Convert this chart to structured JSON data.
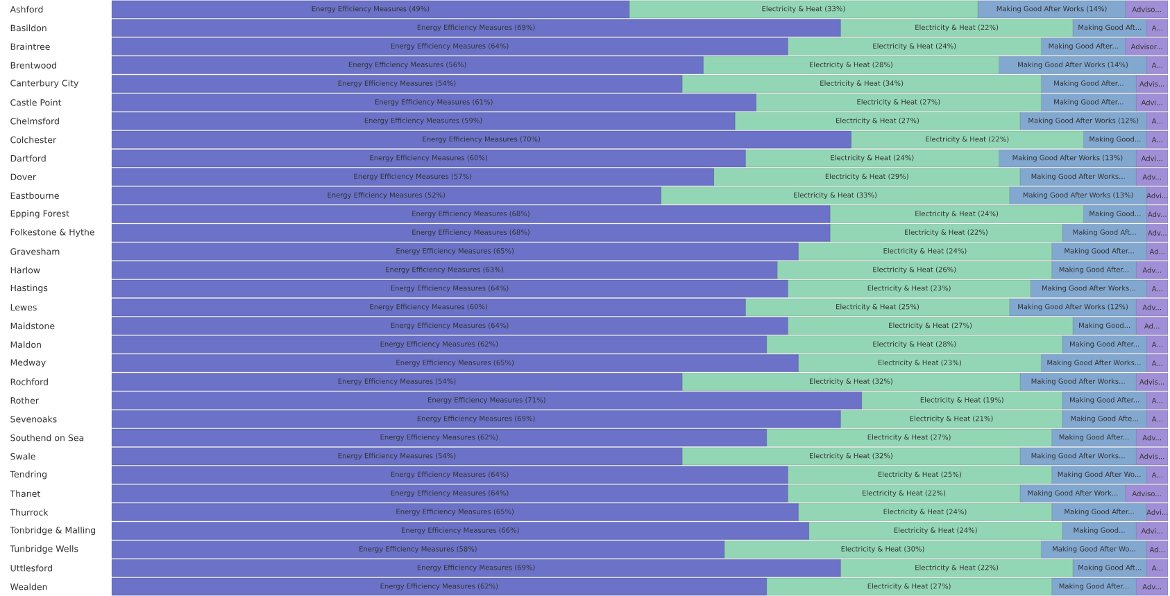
{
  "chart_data": {
    "type": "bar",
    "orientation": "horizontal",
    "stacked": true,
    "xlim": [
      0,
      100
    ],
    "tick_labels": "y",
    "categories": [
      "Ashford",
      "Basildon",
      "Braintree",
      "Brentwood",
      "Canterbury City",
      "Castle Point",
      "Chelmsford",
      "Colchester",
      "Dartford",
      "Dover",
      "Eastbourne",
      "Epping Forest",
      "Folkestone & Hythe",
      "Gravesham",
      "Harlow",
      "Hastings",
      "Lewes",
      "Maidstone",
      "Maldon",
      "Medway",
      "Rochford",
      "Rother",
      "Sevenoaks",
      "Southend on Sea",
      "Swale",
      "Tendring",
      "Thanet",
      "Thurrock",
      "Tonbridge & Malling",
      "Tunbridge Wells",
      "Uttlesford",
      "Wealden"
    ],
    "series": [
      {
        "color": "#6b72c8",
        "values": [
          49,
          69,
          64,
          56,
          54,
          61,
          59,
          70,
          60,
          57,
          52,
          68,
          68,
          65,
          63,
          64,
          60,
          64,
          62,
          65,
          54,
          71,
          69,
          62,
          54,
          64,
          64,
          65,
          66,
          58,
          69,
          62
        ],
        "value_labels": [
          "Energy Efficiency Measures (49%)",
          "Energy Efficiency Measures (69%)",
          "Energy Efficiency Measures (64%)",
          "Energy Efficiency Measures (56%)",
          "Energy Efficiency Measures (54%)",
          "Energy Efficiency Measures (61%)",
          "Energy Efficiency Measures (59%)",
          "Energy Efficiency Measures (70%)",
          "Energy Efficiency Measures (60%)",
          "Energy Efficiency Measures (57%)",
          "Energy Efficiency Measures (52%)",
          "Energy Efficiency Measures (68%)",
          "Energy Efficiency Measures (68%)",
          "Energy Efficiency Measures (65%)",
          "Energy Efficiency Measures (63%)",
          "Energy Efficiency Measures (64%)",
          "Energy Efficiency Measures (60%)",
          "Energy Efficiency Measures (64%)",
          "Energy Efficiency Measures (62%)",
          "Energy Efficiency Measures (65%)",
          "Energy Efficiency Measures (54%)",
          "Energy Efficiency Measures (71%)",
          "Energy Efficiency Measures (69%)",
          "Energy Efficiency Measures (62%)",
          "Energy Efficiency Measures (54%)",
          "Energy Efficiency Measures (64%)",
          "Energy Efficiency Measures (64%)",
          "Energy Efficiency Measures (65%)",
          "Energy Efficiency Measures (66%)",
          "Energy Efficiency Measures (58%)",
          "Energy Efficiency Measures (69%)",
          "Energy Efficiency Measures (62%)"
        ]
      },
      {
        "color": "#93d6b5",
        "values": [
          33,
          22,
          24,
          28,
          34,
          27,
          27,
          22,
          24,
          29,
          33,
          24,
          22,
          24,
          26,
          23,
          25,
          27,
          28,
          23,
          32,
          19,
          21,
          27,
          32,
          25,
          22,
          24,
          24,
          30,
          22,
          27
        ],
        "value_labels": [
          "Electricity & Heat (33%)",
          "Electricity & Heat (22%)",
          "Electricity & Heat (24%)",
          "Electricity & Heat (28%)",
          "Electricity & Heat (34%)",
          "Electricity & Heat (27%)",
          "Electricity & Heat (27%)",
          "Electricity & Heat (22%)",
          "Electricity & Heat (24%)",
          "Electricity & Heat (29%)",
          "Electricity & Heat (33%)",
          "Electricity & Heat (24%)",
          "Electricity & Heat (22%)",
          "Electricity & Heat (24%)",
          "Electricity & Heat (26%)",
          "Electricity & Heat (23%)",
          "Electricity & Heat (25%)",
          "Electricity & Heat (27%)",
          "Electricity & Heat (28%)",
          "Electricity & Heat (23%)",
          "Electricity & Heat (32%)",
          "Electricity & Heat (19%)",
          "Electricity & Heat (21%)",
          "Electricity & Heat (27%)",
          "Electricity & Heat (32%)",
          "Electricity & Heat (25%)",
          "Electricity & Heat (22%)",
          "Electricity & Heat (24%)",
          "Electricity & Heat (24%)",
          "Electricity & Heat (30%)",
          "Electricity & Heat (22%)",
          "Electricity & Heat (27%)"
        ]
      },
      {
        "color": "#82a8d0",
        "values": [
          14,
          7,
          8,
          14,
          9,
          9,
          12,
          6,
          13,
          11,
          13,
          6,
          8,
          9,
          8,
          11,
          12,
          6,
          8,
          10,
          11,
          8,
          8,
          8,
          11,
          9,
          10,
          9,
          7,
          10,
          7,
          8
        ],
        "value_labels": [
          "Making Good After Works (14%)",
          "Making Good Aft...",
          "Making Good After...",
          "Making Good After Works (14%)",
          "Making Good After...",
          "Making Good After...",
          "Making Good After Works (12%)",
          "Making Good...",
          "Making Good After Works (13%)",
          "Making Good After Works...",
          "Making Good After Works (13%)",
          "Making Good...",
          "Making Good Aft...",
          "Making Good After...",
          "Making Good After...",
          "Making Good After Works...",
          "Making Good After Works (12%)",
          "Making Good...",
          "Making Good After...",
          "Making Good After Works...",
          "Making Good After Works...",
          "Making Good After...",
          "Making Good Afte...",
          "Making Good After...",
          "Making Good After Works...",
          "Making Good After Wo...",
          "Making Good After Work...",
          "Making Good After...",
          "Making Good...",
          "Making Good After Wo...",
          "Making Good Aft...",
          "Making Good After..."
        ]
      },
      {
        "color": "#a08fd6",
        "values": [
          4,
          2,
          4,
          2,
          3,
          3,
          2,
          2,
          3,
          3,
          2,
          2,
          2,
          2,
          3,
          2,
          3,
          3,
          2,
          2,
          3,
          2,
          2,
          3,
          3,
          2,
          4,
          2,
          3,
          2,
          2,
          3
        ],
        "value_labels": [
          "Adviso...",
          "A...",
          "Advisor...",
          "A...",
          "Advis...",
          "Advi...",
          "A...",
          "A...",
          "Advi...",
          "Adv...",
          "Advi...",
          "Adv...",
          "Adv...",
          "Ad...",
          "Adv...",
          "A...",
          "Adv...",
          "Ad...",
          "A...",
          "A...",
          "Advis...",
          "A...",
          "A...",
          "Adv...",
          "Advis...",
          "A...",
          "Adviso...",
          "Advi...",
          "Advi...",
          "Ad...",
          "A...",
          "Adv..."
        ]
      }
    ]
  }
}
